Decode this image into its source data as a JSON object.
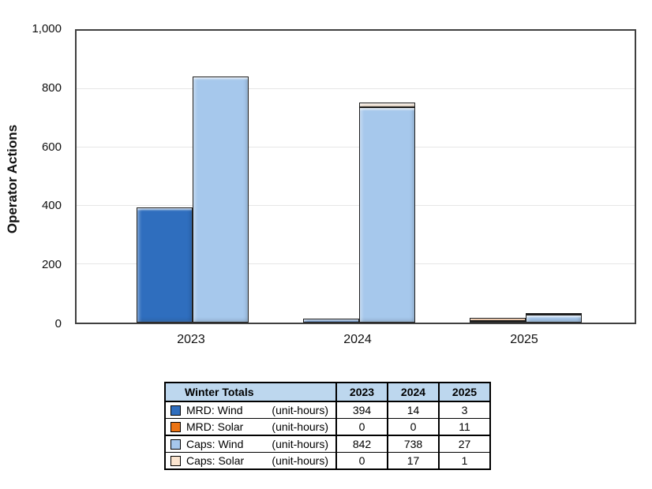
{
  "chart_data": {
    "type": "bar",
    "subtype": "grouped-stacked-columns",
    "categories": [
      "2023",
      "2024",
      "2025"
    ],
    "series": [
      {
        "name": "MRD: Wind",
        "stack": "MRD",
        "color": "#2f6ebe",
        "values": [
          394,
          14,
          3
        ]
      },
      {
        "name": "MRD: Solar",
        "stack": "MRD",
        "color": "#ec7414",
        "values": [
          0,
          0,
          11
        ]
      },
      {
        "name": "Caps: Wind",
        "stack": "Caps",
        "color": "#a6c8ec",
        "values": [
          842,
          738,
          27
        ]
      },
      {
        "name": "Caps: Solar",
        "stack": "Caps",
        "color": "#fbe5d0",
        "values": [
          0,
          17,
          1
        ]
      }
    ],
    "title": "",
    "xlabel": "",
    "ylabel": "Operator Actions",
    "ylim": [
      0,
      1000
    ],
    "yticks": [
      {
        "value": 0,
        "label": "0"
      },
      {
        "value": 200,
        "label": "200"
      },
      {
        "value": 400,
        "label": "400"
      },
      {
        "value": 600,
        "label": "600"
      },
      {
        "value": 800,
        "label": "800"
      },
      {
        "value": 1000,
        "label": "1,000"
      }
    ],
    "grid": true,
    "legend_position": "table-below"
  },
  "table": {
    "title": "Winter Totals",
    "year_headers": [
      "2023",
      "2024",
      "2025"
    ],
    "header_bg": "#bdd7ee",
    "rows": [
      {
        "swatch": "#2f6ebe",
        "label": "MRD: Wind",
        "unit": "(unit-hours)",
        "values": [
          "394",
          "14",
          "3"
        ],
        "group_end": false
      },
      {
        "swatch": "#ec7414",
        "label": "MRD:  Solar",
        "unit": "(unit-hours)",
        "values": [
          "0",
          "0",
          "11"
        ],
        "group_end": true
      },
      {
        "swatch": "#a6c8ec",
        "label": "Caps: Wind",
        "unit": "(unit-hours)",
        "values": [
          "842",
          "738",
          "27"
        ],
        "group_end": false
      },
      {
        "swatch": "#fbe5d0",
        "label": "Caps: Solar",
        "unit": "(unit-hours)",
        "values": [
          "0",
          "17",
          "1"
        ],
        "group_end": false
      }
    ]
  },
  "colors": {
    "plot_border": "#404040",
    "gridline": "#e6e6e6",
    "bar_outline": "#1f1f1f",
    "table_header_bg": "#bdd7ee"
  }
}
